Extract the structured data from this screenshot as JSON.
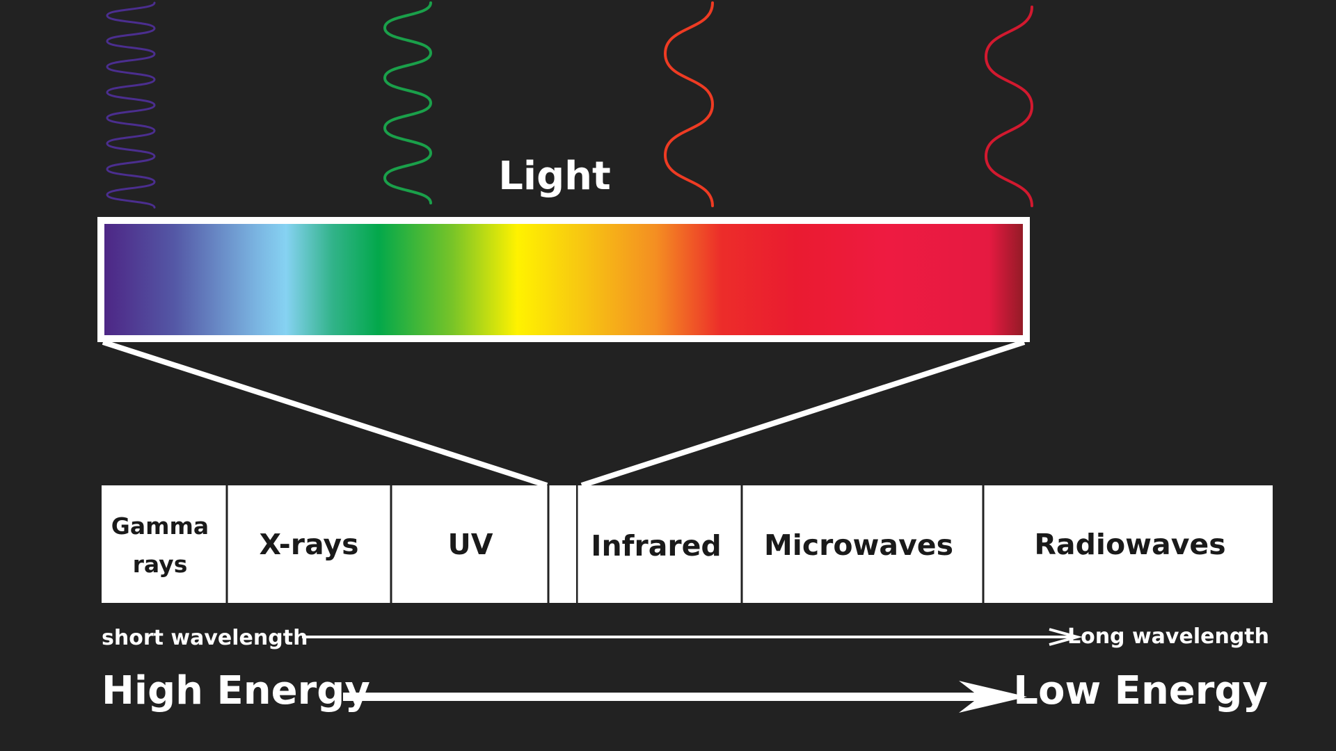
{
  "title": "Light",
  "bands": {
    "gamma_line1": "Gamma",
    "gamma_line2": "rays",
    "xrays": "X-rays",
    "uv": "UV",
    "infrared": "Infrared",
    "microwaves": "Microwaves",
    "radiowaves": "Radiowaves"
  },
  "wavelength": {
    "short": "short wavelength",
    "long": "Long wavelength"
  },
  "energy": {
    "high": "High Energy",
    "low": "Low Energy"
  },
  "colors": {
    "background": "#222222",
    "foreground": "#ffffff",
    "wave_violet": "#4b2e8f",
    "wave_green": "#1aa04a",
    "wave_orange": "#ee3b23",
    "wave_red": "#d2192f",
    "spectrum_stops": [
      "#4d2484",
      "#5458a6",
      "#7bb6e2",
      "#86d2f2",
      "#32b38a",
      "#03a84b",
      "#78c428",
      "#fff200",
      "#f7c612",
      "#f48e22",
      "#ec2d2a",
      "#ea1b30",
      "#ee1b41",
      "#e51a41",
      "#8c1b24"
    ]
  },
  "icons": {
    "waves": [
      "wave-violet-icon",
      "wave-green-icon",
      "wave-orange-icon",
      "wave-red-icon"
    ],
    "arrows": [
      "wavelength-arrow-icon",
      "energy-arrow-icon"
    ]
  }
}
